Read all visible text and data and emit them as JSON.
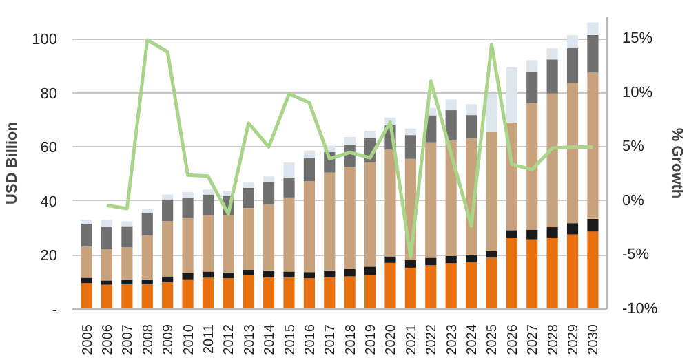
{
  "chart_data": {
    "type": "bar",
    "stacked": true,
    "ylabel": "USD Billion",
    "y2label": "% Growth",
    "categories": [
      "2005",
      "2006",
      "2007",
      "2008",
      "2009",
      "2010",
      "2011",
      "2012",
      "2013",
      "2014",
      "2015",
      "2016",
      "2017",
      "2018",
      "2019",
      "2020",
      "2021",
      "2022",
      "2023",
      "2024",
      "2025",
      "2026",
      "2027",
      "2028",
      "2029",
      "2030"
    ],
    "ylim": [
      0,
      108
    ],
    "yticks": [
      {
        "value": 0,
        "label": "-"
      },
      20,
      40,
      60,
      80,
      100
    ],
    "y2lim": [
      -10,
      17
    ],
    "y2ticks": [
      {
        "value": -10,
        "label": "-10%"
      },
      {
        "value": -5,
        "label": "-5%"
      },
      {
        "value": 0,
        "label": "0%"
      },
      {
        "value": 5,
        "label": "5%"
      },
      {
        "value": 10,
        "label": "10%"
      },
      {
        "value": 15,
        "label": "15%"
      }
    ],
    "grid": "y",
    "series": [
      {
        "color": "#e8700f",
        "values": [
          9.6,
          9.0,
          9.2,
          9.2,
          9.9,
          11.0,
          11.6,
          11.4,
          12.6,
          11.7,
          11.7,
          11.4,
          11.7,
          12.1,
          12.6,
          17.1,
          15.3,
          16.2,
          17.0,
          17.3,
          19.0,
          26.5,
          25.8,
          26.5,
          27.6,
          28.7
        ]
      },
      {
        "color": "#1a1a1a",
        "values": [
          2.0,
          1.6,
          1.8,
          1.8,
          2.2,
          2.4,
          2.3,
          2.1,
          2.0,
          2.6,
          2.2,
          2.3,
          2.6,
          2.7,
          3.1,
          2.4,
          2.8,
          2.8,
          2.7,
          2.9,
          2.5,
          2.7,
          3.6,
          3.8,
          4.2,
          4.7
        ]
      },
      {
        "color": "#c8a27c",
        "values": [
          11.5,
          11.6,
          11.9,
          16.3,
          20.4,
          20.2,
          20.8,
          21.3,
          22.8,
          24.5,
          27.4,
          33.6,
          36.2,
          37.9,
          38.8,
          39.5,
          37.5,
          42.7,
          42.6,
          43.0,
          44.0,
          39.8,
          46.8,
          49.5,
          51.8,
          54.1
        ]
      },
      {
        "color": "#707070",
        "values": [
          8.5,
          8.3,
          7.8,
          8.3,
          8.1,
          7.6,
          7.7,
          7.1,
          7.5,
          8.3,
          7.4,
          8.7,
          7.6,
          8.1,
          8.7,
          9.0,
          8.8,
          10.0,
          11.3,
          8.6,
          0,
          0,
          11.7,
          12.6,
          13.0,
          13.9
        ]
      },
      {
        "color": "#dde6ef",
        "values": [
          1.4,
          2.5,
          1.8,
          1.4,
          1.8,
          2.1,
          1.8,
          1.8,
          1.9,
          2.0,
          5.5,
          2.7,
          2.4,
          2.9,
          2.7,
          2.9,
          2.4,
          2.8,
          4.0,
          4.0,
          14.0,
          20.4,
          4.2,
          4.2,
          4.8,
          4.7
        ]
      },
      {
        "type": "line",
        "axis": "y2",
        "color": "#a8d58a",
        "values": [
          null,
          -0.4,
          -0.7,
          14.9,
          13.8,
          2.4,
          2.3,
          -1.2,
          7.2,
          5.0,
          9.9,
          9.1,
          3.9,
          4.5,
          4.0,
          7.3,
          -5.2,
          11.1,
          4.4,
          -2.3,
          14.5,
          3.4,
          2.9,
          4.9,
          5.0,
          5.0
        ]
      }
    ]
  }
}
